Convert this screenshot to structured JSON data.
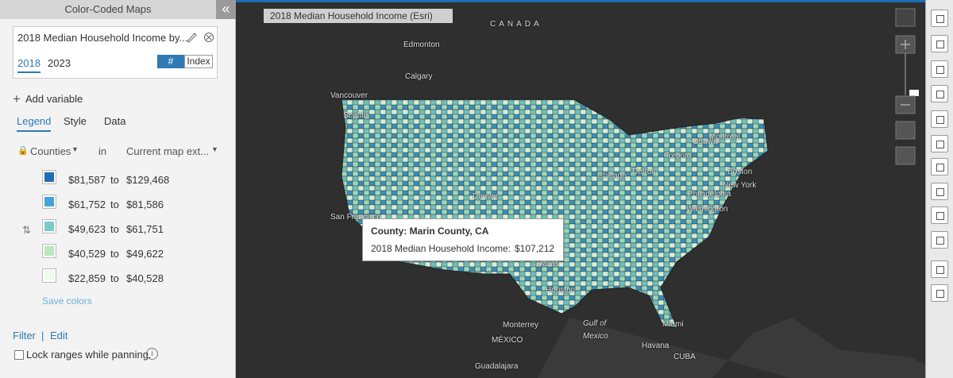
{
  "panel": {
    "header": "Color-Coded Maps",
    "collapse": "«",
    "variable": "2018 Median Household Income by...",
    "years": [
      "2018",
      "2023"
    ],
    "modes": [
      "#",
      "Index"
    ],
    "add_variable": "Add variable",
    "tabs": [
      "Legend",
      "Style",
      "Data"
    ],
    "geography": "Counties",
    "in": "in",
    "extent": "Current map ext...",
    "legend": [
      {
        "color": "#1f6db4",
        "from": "$81,587",
        "to": "$129,468"
      },
      {
        "color": "#45a4d6",
        "from": "$61,752",
        "to": "$81,586"
      },
      {
        "color": "#7accc8",
        "from": "$49,623",
        "to": "$61,751"
      },
      {
        "color": "#b9e8be",
        "from": "$40,529",
        "to": "$49,622"
      },
      {
        "color": "#eefbea",
        "from": "$22,859",
        "to": "$40,528"
      }
    ],
    "to_word": "to",
    "save_colors": "Save colors",
    "filter": "Filter",
    "edit": "Edit",
    "lock": "Lock ranges while panning."
  },
  "map": {
    "title": "2018 Median Household Income (Esri)",
    "labels": [
      "CANADA",
      "Edmonton",
      "Calgary",
      "Vancouver",
      "Seattle",
      "Ottawa",
      "Montreal",
      "Toronto",
      "Chicago",
      "Detroit",
      "Boston",
      "New York",
      "Philadelphia",
      "Washington",
      "Denver",
      "San Francisco",
      "Dallas",
      "Houston",
      "Monterrey",
      "MÉXICO",
      "Gulf of",
      "Mexico",
      "Miami",
      "Havana",
      "CUBA",
      "Guadalajara"
    ],
    "tooltip": {
      "title": "County: Marin County, CA",
      "label": "2018 Median Household Income:",
      "value": "$107,212"
    }
  }
}
